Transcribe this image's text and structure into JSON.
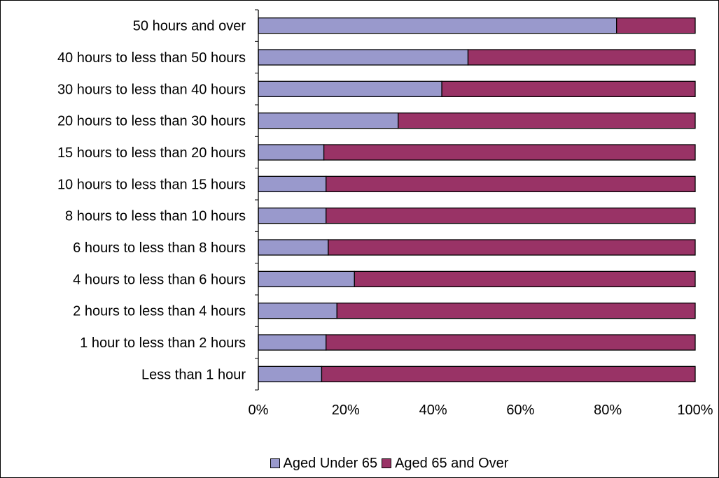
{
  "chart_data": {
    "type": "bar",
    "orientation": "horizontal",
    "stacked": "percent",
    "categories": [
      "50 hours and over",
      "40 hours to less than 50 hours",
      "30 hours to less than 40 hours",
      "20 hours to less than 30 hours",
      "15 hours to less than 20 hours",
      "10 hours to less than 15 hours",
      "8 hours to less than 10 hours",
      "6 hours to less than 8 hours",
      "4 hours to less than 6 hours",
      "2 hours to less than 4 hours",
      "1 hour to less than 2 hours",
      "Less than 1 hour"
    ],
    "series": [
      {
        "name": "Aged Under 65",
        "color": "#9999cc",
        "values": [
          82,
          48,
          42,
          32,
          15,
          15.5,
          15.5,
          16,
          22,
          18,
          15.5,
          14.5
        ]
      },
      {
        "name": "Aged 65 and Over",
        "color": "#993366",
        "values": [
          18,
          52,
          58,
          68,
          85,
          84.5,
          84.5,
          84,
          78,
          82,
          84.5,
          85.5
        ]
      }
    ],
    "x_ticks": [
      "0%",
      "20%",
      "40%",
      "60%",
      "80%",
      "100%"
    ],
    "xlim": [
      0,
      100
    ],
    "grid": false,
    "legend_position": "bottom"
  }
}
